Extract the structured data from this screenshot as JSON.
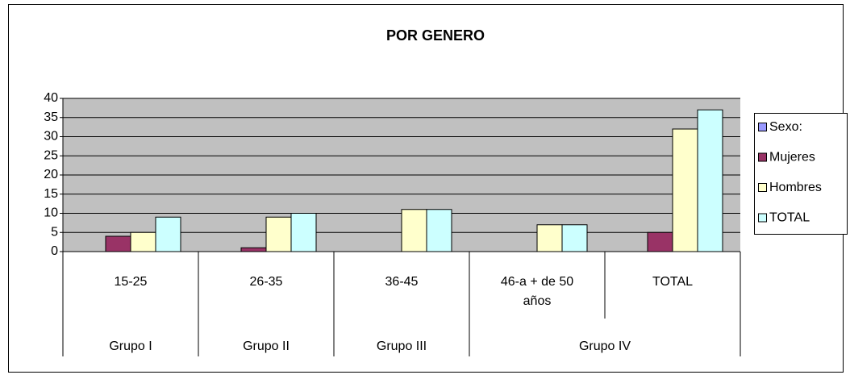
{
  "chart_data": {
    "type": "bar",
    "title": "POR GENERO",
    "categories": [
      "15-25",
      "26-35",
      "36-45",
      "46-a + de 50 años",
      "TOTAL"
    ],
    "group_labels": [
      "Grupo I",
      "Grupo II",
      "Grupo III",
      "Grupo IV",
      null
    ],
    "series": [
      {
        "name": "Sexo:",
        "color": "#9999ff",
        "values": [
          null,
          null,
          null,
          null,
          null
        ]
      },
      {
        "name": "Mujeres",
        "color": "#993366",
        "values": [
          4,
          1,
          0,
          0,
          5
        ]
      },
      {
        "name": "Hombres",
        "color": "#ffffcc",
        "values": [
          5,
          9,
          11,
          7,
          32
        ]
      },
      {
        "name": "TOTAL",
        "color": "#ccffff",
        "values": [
          9,
          10,
          11,
          7,
          37
        ]
      }
    ],
    "ylim": [
      0,
      40
    ],
    "yticks": [
      0,
      5,
      10,
      15,
      20,
      25,
      30,
      35,
      40
    ],
    "grid": true,
    "legend": "right"
  }
}
